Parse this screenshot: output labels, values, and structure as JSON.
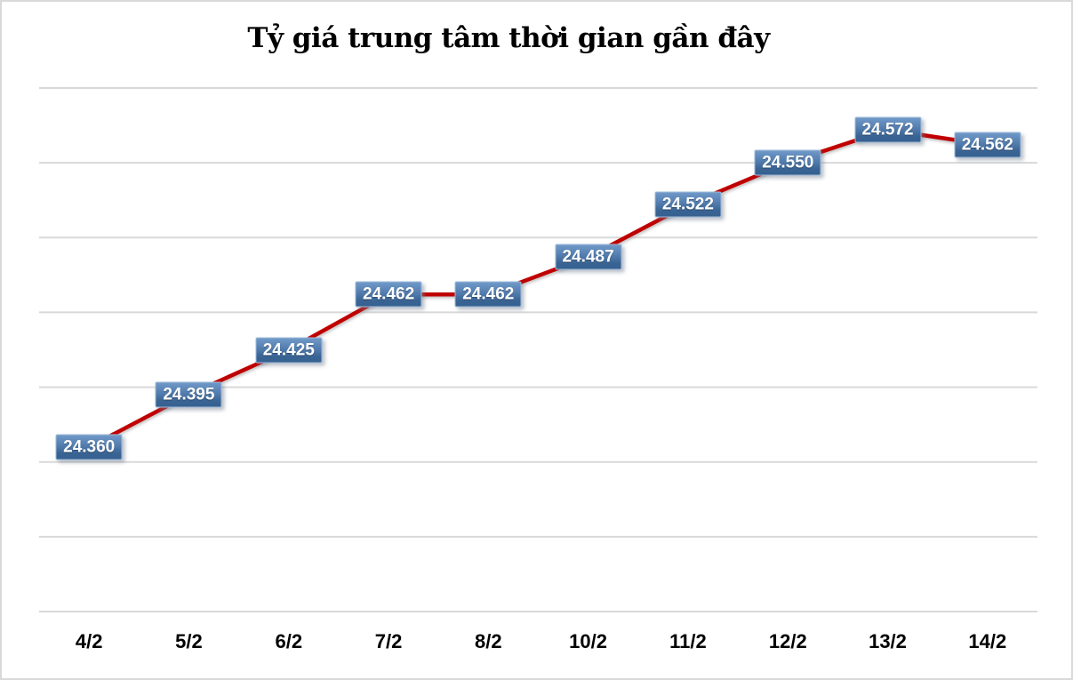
{
  "chart_data": {
    "type": "line",
    "title": "Tỷ giá trung tâm thời gian gần đây",
    "categories": [
      "4/2",
      "5/2",
      "6/2",
      "7/2",
      "8/2",
      "10/2",
      "11/2",
      "12/2",
      "13/2",
      "14/2"
    ],
    "values": [
      24360,
      24395,
      24425,
      24462,
      24462,
      24487,
      24522,
      24550,
      24572,
      24562
    ],
    "point_labels": [
      "24.360",
      "24.395",
      "24.425",
      "24.462",
      "24.462",
      "24.487",
      "24.522",
      "24.550",
      "24.572",
      "24.562"
    ],
    "xlabel": "",
    "ylabel": "",
    "ylim": [
      24250,
      24600
    ],
    "gridline_step": 50,
    "grid": true,
    "legend": "none",
    "colors": {
      "line": "#c00000",
      "gridline": "#d9d9d9",
      "frame_border": "#d9d9d9",
      "label_box_top": "#7099c8",
      "label_box_bottom": "#35608f",
      "label_box_border": "#9fbbda",
      "label_text": "#ffffff",
      "axis_text": "#000000",
      "title_text": "#000000",
      "background": "#ffffff"
    }
  }
}
